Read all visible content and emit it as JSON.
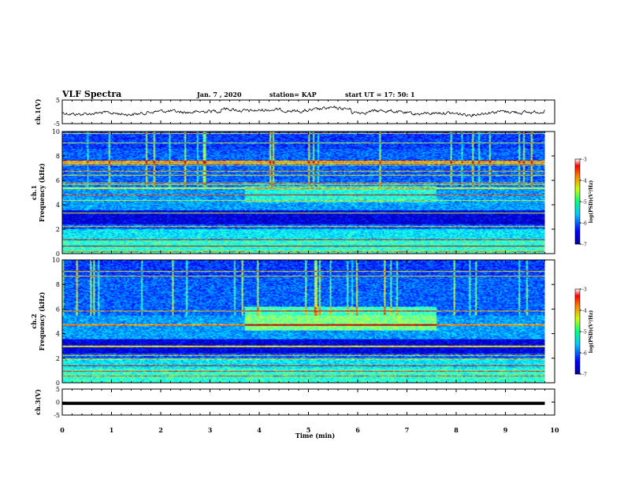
{
  "header": {
    "title": "VLF Spectra",
    "date": "Jan. 7 , 2020",
    "station": "station= KAP",
    "start_ut": "start UT =  17: 50: 1"
  },
  "chart_data": [
    {
      "type": "line",
      "name": "ch1-waveform",
      "ylabel": "ch.1(V)",
      "ylim": [
        -5,
        5
      ],
      "yticks": [
        "5",
        "-5"
      ],
      "xlim": [
        0,
        10
      ],
      "x_extent": [
        0,
        9.8
      ]
    },
    {
      "type": "heatmap",
      "name": "ch1-spectrogram",
      "ylabel_line1": "ch.1",
      "ylabel_line2": "Frequency (kHz)",
      "ylim": [
        0,
        10
      ],
      "yticks": [
        "0",
        "2",
        "4",
        "6",
        "8",
        "10"
      ],
      "xlim": [
        0,
        10
      ],
      "x_extent": [
        0,
        9.8
      ],
      "colorbar": {
        "label": "log(PSD)(V²/Hz)",
        "range": [
          -7,
          -3
        ],
        "ticks": [
          "-3",
          "-4",
          "-5",
          "-6",
          "-7"
        ]
      }
    },
    {
      "type": "heatmap",
      "name": "ch2-spectrogram",
      "ylabel_line1": "ch.2",
      "ylabel_line2": "Frequency (kHz)",
      "ylim": [
        0,
        10
      ],
      "yticks": [
        "0",
        "2",
        "4",
        "6",
        "8",
        "10"
      ],
      "xlim": [
        0,
        10
      ],
      "x_extent": [
        0,
        9.8
      ],
      "colorbar": {
        "label": "log(PSD)(V²/Hz)",
        "range": [
          -7,
          -3
        ],
        "ticks": [
          "-3",
          "-4",
          "-5",
          "-6",
          "-7"
        ]
      }
    },
    {
      "type": "line",
      "name": "ch3-waveform",
      "ylabel": "ch.3(V)",
      "ylim": [
        -5,
        5
      ],
      "yticks": [
        "5",
        "0",
        "-5"
      ],
      "xlim": [
        0,
        10
      ],
      "x_extent": [
        0,
        9.8
      ],
      "level": -0.5,
      "xlabel": "Time (min)",
      "xticks": [
        "0",
        "1",
        "2",
        "3",
        "4",
        "5",
        "6",
        "7",
        "8",
        "9",
        "10"
      ]
    }
  ],
  "colors": {
    "jet": [
      "#00007f",
      "#0000ff",
      "#007fff",
      "#00ffff",
      "#7fff7f",
      "#ffff00",
      "#ff7f00",
      "#ff0000",
      "#7f0000"
    ]
  }
}
